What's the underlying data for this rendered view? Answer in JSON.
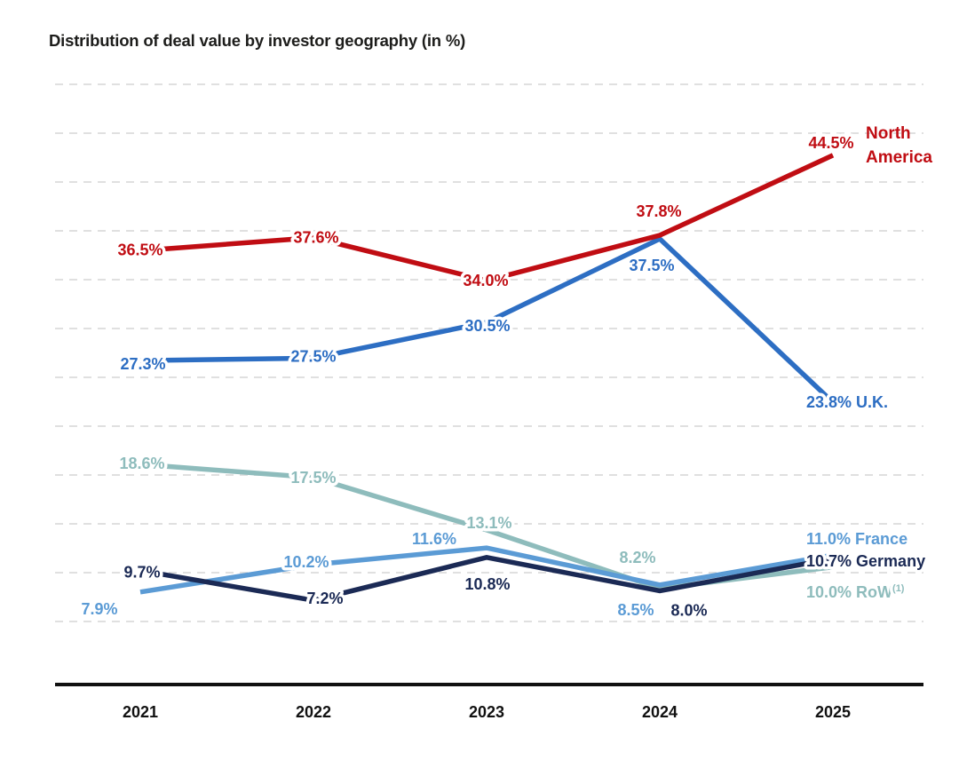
{
  "title": "Distribution of deal value by investor geography (in %)",
  "chart_data": {
    "type": "line",
    "x": [
      "2021",
      "2022",
      "2023",
      "2024",
      "2025"
    ],
    "series": [
      {
        "name": "North America",
        "color": "#c00d13",
        "values": [
          36.5,
          37.6,
          34.0,
          37.8,
          44.5
        ],
        "point_labels": [
          "36.5%",
          "37.6%",
          "34.0%",
          "37.8%",
          "44.5%"
        ],
        "end_name_lines": [
          "North",
          "America"
        ]
      },
      {
        "name": "U.K.",
        "color": "#2d6ec3",
        "values": [
          27.3,
          27.5,
          30.5,
          37.5,
          23.8
        ],
        "point_labels": [
          "27.3%",
          "27.5%",
          "30.5%",
          "37.5%",
          "23.8%"
        ],
        "end_label": "23.8% U.K."
      },
      {
        "name": "France",
        "color": "#5b9bd5",
        "values": [
          7.9,
          10.2,
          11.6,
          8.5,
          11.0
        ],
        "point_labels": [
          "7.9%",
          "10.2%",
          "11.6%",
          "8.5%",
          "11.0%"
        ],
        "end_label": "11.0% France"
      },
      {
        "name": "Germany",
        "color": "#1b2a55",
        "values": [
          9.7,
          7.2,
          10.8,
          8.0,
          10.7
        ],
        "point_labels": [
          "9.7%",
          "7.2%",
          "10.8%",
          "8.0%",
          "10.7%"
        ],
        "end_label": "10.7% Germany"
      },
      {
        "name": "RoW",
        "name_superscript": "(1)",
        "color": "#8ebcbc",
        "values": [
          18.6,
          17.5,
          13.1,
          8.2,
          10.0
        ],
        "point_labels": [
          "18.6%",
          "17.5%",
          "13.1%",
          "8.2%",
          "10.0%"
        ],
        "end_label": "10.0% RoW",
        "end_label_superscript": "(1)"
      }
    ],
    "grid": {
      "style": "dashed",
      "horizontal_lines": 12,
      "labeled": false
    },
    "x_axis": {
      "labels": [
        "2021",
        "2022",
        "2023",
        "2024",
        "2025"
      ]
    },
    "legend_position": "right-inline",
    "title": "Distribution of deal value by investor geography (in %)",
    "xlabel": "",
    "ylabel": ""
  }
}
